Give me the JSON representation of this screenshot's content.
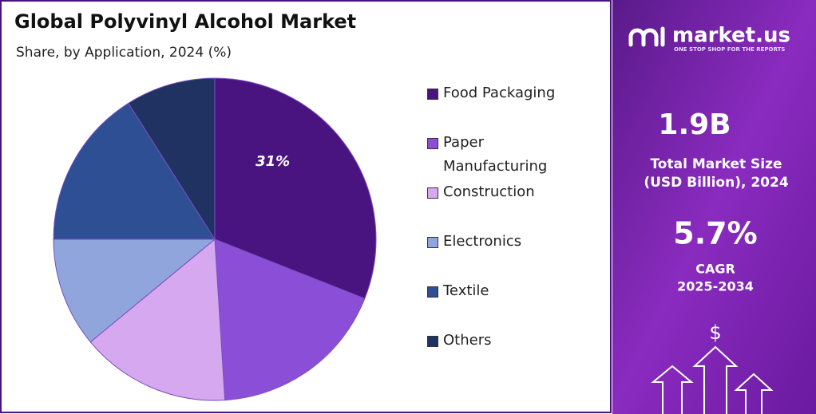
{
  "chart_data": {
    "type": "pie",
    "title": "Global Polyvinyl Alcohol Market",
    "subtitle": "Share, by Application, 2024 (%)",
    "categories": [
      "Food Packaging",
      "Paper Manufacturing",
      "Construction",
      "Electronics",
      "Textile",
      "Others"
    ],
    "values": [
      31,
      18,
      15,
      11,
      16,
      9
    ],
    "value_labels": [
      "31%",
      null,
      null,
      null,
      null,
      null
    ],
    "colors": [
      "#4a1480",
      "#8a4fd6",
      "#d6a8ef",
      "#8fa5dc",
      "#2e4f93",
      "#1f3262"
    ],
    "legend": "right"
  },
  "side_panel": {
    "brand": "market.us",
    "tagline": "ONE STOP SHOP FOR THE REPORTS",
    "market_size": "1.9B",
    "market_size_label_1": "Total Market Size",
    "market_size_label_2": "(USD Billion), 2024",
    "cagr": "5.7%",
    "cagr_label": "CAGR",
    "cagr_period": "2025-2034",
    "icon_text": "$"
  }
}
